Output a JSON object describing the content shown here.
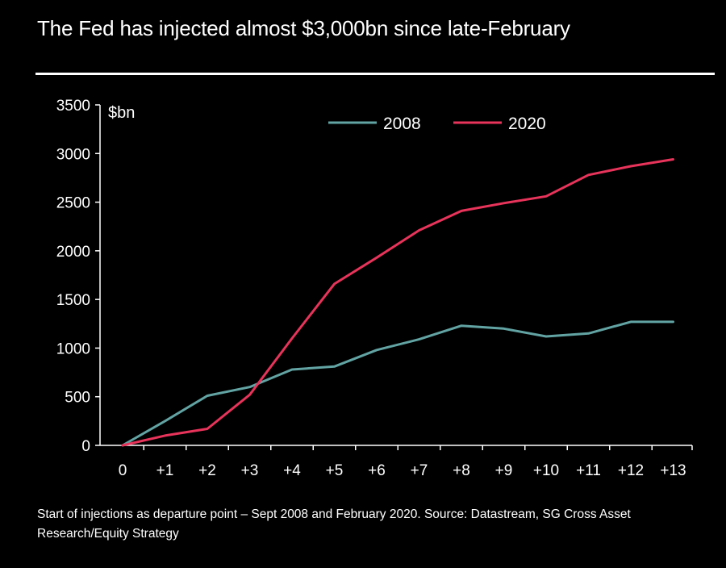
{
  "title": "The Fed has injected almost $3,000bn since late-February",
  "caption": "Start of injections as departure point – Sept 2008 and February 2020. Source: Datastream, SG Cross Asset Research/Equity Strategy",
  "chart_data": {
    "type": "line",
    "title": "The Fed has injected almost $3,000bn since late-February",
    "ylabel": "$bn",
    "xlabel": "",
    "ylim": [
      0,
      3500
    ],
    "yticks": [
      0,
      500,
      1000,
      1500,
      2000,
      2500,
      3000,
      3500
    ],
    "categories": [
      "0",
      "+1",
      "+2",
      "+3",
      "+4",
      "+5",
      "+6",
      "+7",
      "+8",
      "+9",
      "+10",
      "+11",
      "+12",
      "+13"
    ],
    "grid": false,
    "legend_position": "top-right",
    "series": [
      {
        "name": "2008",
        "color": "#62a3a3",
        "values": [
          0,
          250,
          510,
          600,
          780,
          810,
          980,
          1090,
          1230,
          1200,
          1120,
          1150,
          1270,
          1270
        ]
      },
      {
        "name": "2020",
        "color": "#e8335a",
        "values": [
          0,
          100,
          170,
          520,
          1100,
          1660,
          1930,
          2210,
          2410,
          2490,
          2560,
          2780,
          2870,
          2940
        ]
      }
    ]
  }
}
